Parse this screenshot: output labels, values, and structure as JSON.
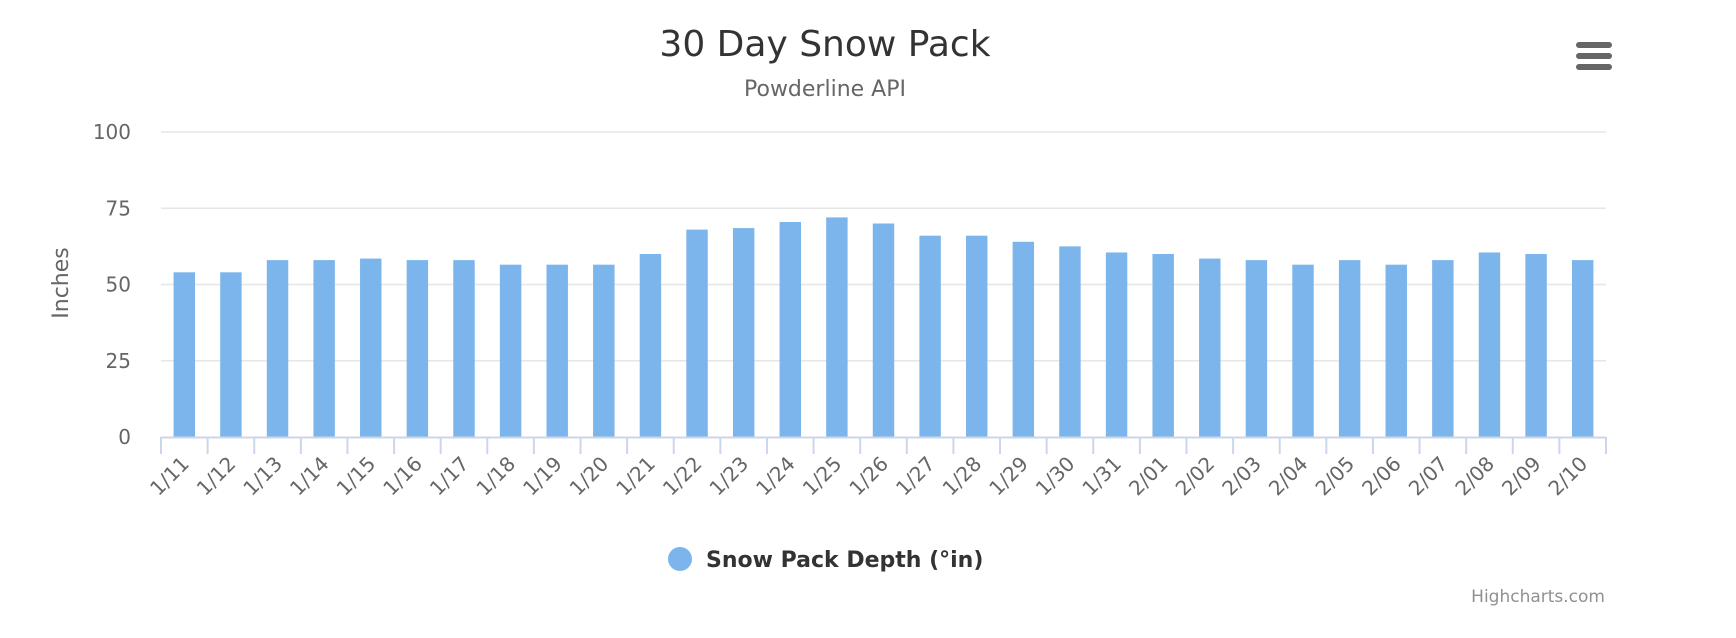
{
  "chart_data": {
    "type": "bar",
    "title": "30 Day Snow Pack",
    "subtitle": "Powderline API",
    "xlabel": "",
    "ylabel": "Inches",
    "ylim": [
      0,
      100
    ],
    "yticks": [
      "0",
      "25",
      "50",
      "75",
      "100"
    ],
    "grid": true,
    "legend_position": "bottom-center",
    "categories": [
      "1/11",
      "1/12",
      "1/13",
      "1/14",
      "1/15",
      "1/16",
      "1/17",
      "1/18",
      "1/19",
      "1/20",
      "1/21",
      "1/22",
      "1/23",
      "1/24",
      "1/25",
      "1/26",
      "1/27",
      "1/28",
      "1/29",
      "1/30",
      "1/31",
      "2/01",
      "2/02",
      "2/03",
      "2/04",
      "2/05",
      "2/06",
      "2/07",
      "2/08",
      "2/09",
      "2/10"
    ],
    "series": [
      {
        "name": "Snow Pack Depth (°in)",
        "color": "#7cb5ec",
        "values": [
          54,
          54,
          58,
          58,
          58.5,
          58,
          58,
          56.5,
          56.5,
          56.5,
          60,
          68,
          68.5,
          70.5,
          72,
          70,
          66,
          66,
          64,
          62.5,
          60.5,
          60,
          58.5,
          58,
          56.5,
          58,
          56.5,
          58,
          60.5,
          60,
          58
        ]
      }
    ]
  },
  "credits": "Highcharts.com",
  "menu_icon": "hamburger-menu-icon",
  "colors": {
    "series": "#7cb5ec",
    "grid": "#e6e6e6",
    "axis": "#ccd6eb"
  }
}
